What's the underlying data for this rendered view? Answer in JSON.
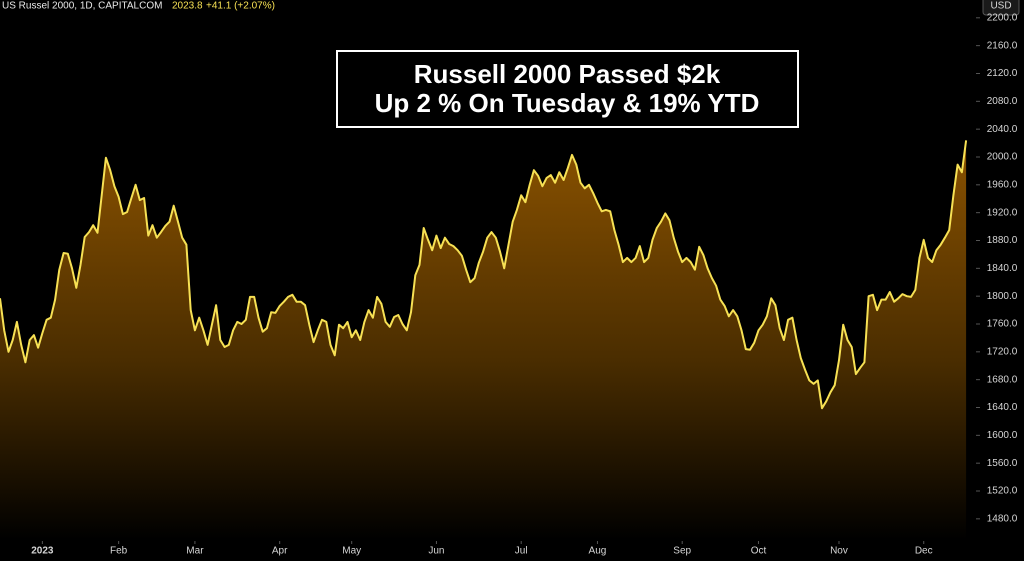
{
  "chart_data": {
    "type": "line",
    "symbol": "US Russel 2000, 1D, CAPITALCOM",
    "last": "2023.8",
    "change": "+41.1 (+2.07%)",
    "currency": "USD",
    "annotation": [
      "Russell 2000 Passed $2k",
      "Up 2 % On Tuesday & 19% YTD"
    ],
    "color": "#f7e154",
    "values": [
      1797,
      1751,
      1720,
      1737,
      1763,
      1730,
      1705,
      1737,
      1744,
      1726,
      1747,
      1766,
      1769,
      1795,
      1838,
      1862,
      1861,
      1840,
      1812,
      1845,
      1885,
      1892,
      1902,
      1891,
      1945,
      1999,
      1981,
      1958,
      1943,
      1918,
      1921,
      1941,
      1960,
      1938,
      1941,
      1887,
      1902,
      1884,
      1892,
      1901,
      1907,
      1930,
      1907,
      1884,
      1874,
      1780,
      1751,
      1769,
      1751,
      1730,
      1759,
      1787,
      1737,
      1727,
      1730,
      1751,
      1763,
      1760,
      1766,
      1799,
      1799,
      1769,
      1749,
      1754,
      1777,
      1776,
      1786,
      1792,
      1799,
      1802,
      1792,
      1792,
      1787,
      1759,
      1734,
      1751,
      1766,
      1763,
      1730,
      1715,
      1759,
      1754,
      1763,
      1741,
      1751,
      1737,
      1763,
      1780,
      1769,
      1799,
      1789,
      1763,
      1756,
      1770,
      1773,
      1760,
      1751,
      1777,
      1830,
      1845,
      1898,
      1881,
      1866,
      1887,
      1869,
      1884,
      1875,
      1872,
      1866,
      1858,
      1838,
      1820,
      1826,
      1848,
      1864,
      1884,
      1892,
      1884,
      1864,
      1840,
      1874,
      1907,
      1924,
      1945,
      1935,
      1960,
      1981,
      1973,
      1958,
      1970,
      1974,
      1963,
      1978,
      1967,
      1984,
      2003,
      1989,
      1963,
      1955,
      1960,
      1948,
      1934,
      1922,
      1924,
      1922,
      1895,
      1874,
      1849,
      1855,
      1849,
      1855,
      1872,
      1849,
      1855,
      1881,
      1898,
      1907,
      1919,
      1909,
      1884,
      1864,
      1849,
      1855,
      1849,
      1838,
      1871,
      1859,
      1840,
      1826,
      1815,
      1795,
      1786,
      1771,
      1780,
      1771,
      1751,
      1724,
      1723,
      1733,
      1751,
      1759,
      1771,
      1797,
      1787,
      1754,
      1737,
      1766,
      1769,
      1737,
      1711,
      1694,
      1679,
      1674,
      1679,
      1639,
      1649,
      1662,
      1672,
      1708,
      1759,
      1737,
      1727,
      1688,
      1697,
      1705,
      1800,
      1802,
      1780,
      1795,
      1795,
      1806,
      1792,
      1797,
      1803,
      1800,
      1799,
      1809,
      1855,
      1881,
      1855,
      1849,
      1866,
      1874,
      1884,
      1895,
      1945,
      1989,
      1978,
      2023.8
    ],
    "xlim": [
      0,
      230.1
    ],
    "xticks": [
      {
        "value": 10,
        "label": "2023"
      },
      {
        "value": 28,
        "label": "Feb"
      },
      {
        "value": 46,
        "label": "Mar"
      },
      {
        "value": 66,
        "label": "Apr"
      },
      {
        "value": 83,
        "label": "May"
      },
      {
        "value": 103,
        "label": "Jun"
      },
      {
        "value": 123,
        "label": "Jul"
      },
      {
        "value": 141,
        "label": "Aug"
      },
      {
        "value": 161,
        "label": "Sep"
      },
      {
        "value": 179,
        "label": "Oct"
      },
      {
        "value": 198,
        "label": "Nov"
      },
      {
        "value": 218,
        "label": "Dec"
      }
    ],
    "ylim": [
      1449.6,
      2225.6
    ],
    "yticks": [
      {
        "value": 1480,
        "label": "1480.0"
      },
      {
        "value": 1520,
        "label": "1520.0"
      },
      {
        "value": 1560,
        "label": "1560.0"
      },
      {
        "value": 1600,
        "label": "1600.0"
      },
      {
        "value": 1640,
        "label": "1640.0"
      },
      {
        "value": 1680,
        "label": "1680.0"
      },
      {
        "value": 1720,
        "label": "1720.0"
      },
      {
        "value": 1760,
        "label": "1760.0"
      },
      {
        "value": 1800,
        "label": "1800.0"
      },
      {
        "value": 1840,
        "label": "1840.0"
      },
      {
        "value": 1880,
        "label": "1880.0"
      },
      {
        "value": 1920,
        "label": "1920.0"
      },
      {
        "value": 1960,
        "label": "1960.0"
      },
      {
        "value": 2000,
        "label": "2000.0"
      },
      {
        "value": 2040,
        "label": "2040.0"
      },
      {
        "value": 2080,
        "label": "2080.0"
      },
      {
        "value": 2120,
        "label": "2120.0"
      },
      {
        "value": 2160,
        "label": "2160.0"
      },
      {
        "value": 2200,
        "label": "2200.0"
      }
    ],
    "grid": false
  }
}
